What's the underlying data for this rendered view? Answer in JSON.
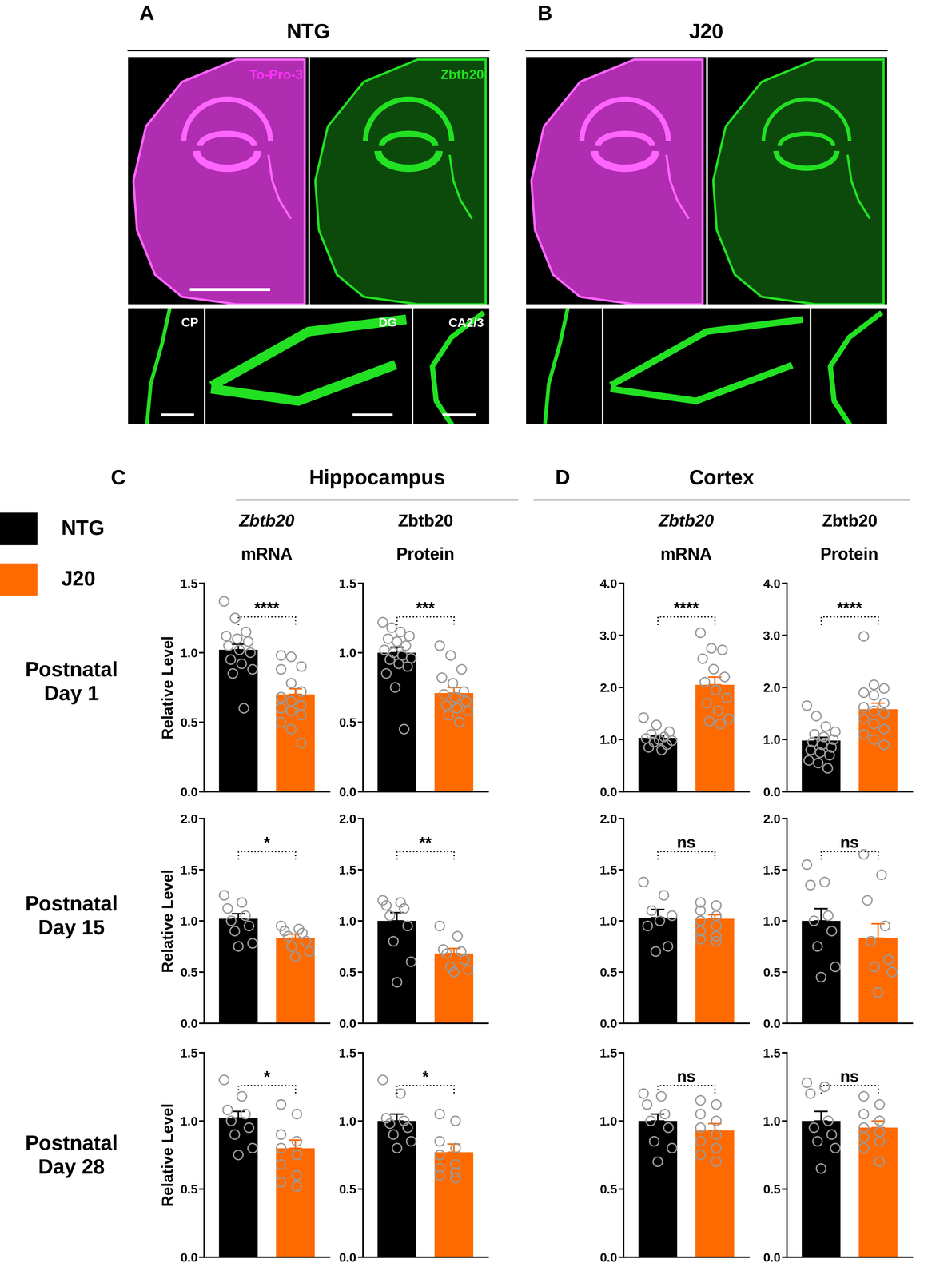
{
  "images": {
    "panels": [
      {
        "label": "A",
        "title": "NTG"
      },
      {
        "label": "B",
        "title": "J20"
      }
    ],
    "stains": [
      "To-Pro-3",
      "Zbtb20"
    ],
    "insets": [
      "CP",
      "DG",
      "CA2/3"
    ]
  },
  "sections": [
    {
      "label": "C",
      "title": "Hippocampus"
    },
    {
      "label": "D",
      "title": "Cortex"
    }
  ],
  "column_titles": [
    [
      "Zbtb20",
      "mRNA"
    ],
    [
      "Zbtb20",
      "Protein"
    ],
    [
      "Zbtb20",
      "mRNA"
    ],
    [
      "Zbtb20",
      "Protein"
    ]
  ],
  "row_titles": [
    "Postnatal\nDay 1",
    "Postnatal\nDay 15",
    "Postnatal\nDay 28"
  ],
  "legend": [
    {
      "name": "NTG",
      "color": "#000000"
    },
    {
      "name": "J20",
      "color": "#ff6a00"
    }
  ],
  "chart_data": [
    {
      "type": "bar",
      "tick_labels": "y",
      "ylabel": "Relative Level",
      "ylim": [
        0,
        1.5
      ],
      "yticks": [
        {
          "value": 0,
          "label": "0.0"
        },
        {
          "value": 0.5,
          "label": "0.5"
        },
        {
          "value": 1,
          "label": "1.0"
        },
        {
          "value": 1.5,
          "label": "1.5"
        }
      ],
      "significance": "****",
      "series": [
        {
          "name": "NTG",
          "color": "#000000",
          "values": [
            1.02
          ],
          "errors": [
            0.04
          ],
          "points": [
            1.37,
            1.25,
            1.15,
            1.12,
            1.1,
            1.08,
            1.05,
            1.02,
            1.0,
            0.95,
            0.92,
            0.88,
            0.85,
            0.6
          ]
        },
        {
          "name": "J20",
          "color": "#ff6a00",
          "values": [
            0.7
          ],
          "errors": [
            0.04
          ],
          "points": [
            0.98,
            0.97,
            0.9,
            0.88,
            0.78,
            0.72,
            0.68,
            0.65,
            0.62,
            0.6,
            0.58,
            0.55,
            0.5,
            0.45,
            0.35
          ]
        }
      ]
    },
    {
      "type": "bar",
      "tick_labels": "y",
      "ylim": [
        0,
        1.5
      ],
      "yticks": [
        {
          "value": 0,
          "label": "0.0"
        },
        {
          "value": 0.5,
          "label": "0.5"
        },
        {
          "value": 1,
          "label": "1.0"
        },
        {
          "value": 1.5,
          "label": "1.5"
        }
      ],
      "significance": "***",
      "series": [
        {
          "name": "NTG",
          "color": "#000000",
          "values": [
            1.0
          ],
          "errors": [
            0.04
          ],
          "points": [
            1.22,
            1.18,
            1.15,
            1.12,
            1.1,
            1.08,
            1.05,
            1.02,
            1.0,
            0.98,
            0.96,
            0.95,
            0.92,
            0.9,
            0.85,
            0.75,
            0.45
          ]
        },
        {
          "name": "J20",
          "color": "#ff6a00",
          "values": [
            0.71
          ],
          "errors": [
            0.04
          ],
          "points": [
            1.05,
            0.98,
            0.88,
            0.82,
            0.78,
            0.72,
            0.7,
            0.68,
            0.65,
            0.62,
            0.6,
            0.58,
            0.55,
            0.5
          ]
        }
      ]
    },
    {
      "type": "bar",
      "tick_labels": "y",
      "ylim": [
        0,
        4
      ],
      "yticks": [
        {
          "value": 0,
          "label": "0.0"
        },
        {
          "value": 1,
          "label": "1.0"
        },
        {
          "value": 2,
          "label": "2.0"
        },
        {
          "value": 3,
          "label": "3.0"
        },
        {
          "value": 4,
          "label": "4.0"
        }
      ],
      "significance": "****",
      "series": [
        {
          "name": "NTG",
          "color": "#000000",
          "values": [
            1.03
          ],
          "errors": [
            0.04
          ],
          "points": [
            1.42,
            1.28,
            1.15,
            1.1,
            1.05,
            1.02,
            1.0,
            0.98,
            0.95,
            0.9,
            0.85,
            0.8
          ]
        },
        {
          "name": "J20",
          "color": "#ff6a00",
          "values": [
            2.05
          ],
          "errors": [
            0.15
          ],
          "points": [
            3.05,
            2.75,
            2.72,
            2.55,
            2.35,
            2.2,
            2.1,
            1.95,
            1.8,
            1.7,
            1.55,
            1.4,
            1.35,
            1.3
          ]
        }
      ]
    },
    {
      "type": "bar",
      "tick_labels": "y",
      "ylim": [
        0,
        4
      ],
      "yticks": [
        {
          "value": 0,
          "label": "0.0"
        },
        {
          "value": 1,
          "label": "1.0"
        },
        {
          "value": 2,
          "label": "2.0"
        },
        {
          "value": 3,
          "label": "3.0"
        },
        {
          "value": 4,
          "label": "4.0"
        }
      ],
      "significance": "****",
      "series": [
        {
          "name": "NTG",
          "color": "#000000",
          "values": [
            0.98
          ],
          "errors": [
            0.06
          ],
          "points": [
            1.65,
            1.45,
            1.25,
            1.15,
            1.1,
            1.05,
            1.0,
            0.95,
            0.9,
            0.85,
            0.8,
            0.75,
            0.7,
            0.6,
            0.55,
            0.45
          ]
        },
        {
          "name": "J20",
          "color": "#ff6a00",
          "values": [
            1.58
          ],
          "errors": [
            0.12
          ],
          "points": [
            2.98,
            2.05,
            1.98,
            1.9,
            1.85,
            1.7,
            1.62,
            1.55,
            1.5,
            1.4,
            1.3,
            1.2,
            1.1,
            1.0,
            0.9
          ]
        }
      ]
    },
    {
      "type": "bar",
      "tick_labels": "y",
      "ylabel": "Relative Level",
      "ylim": [
        0,
        2
      ],
      "yticks": [
        {
          "value": 0,
          "label": "0.0"
        },
        {
          "value": 0.5,
          "label": "0.5"
        },
        {
          "value": 1,
          "label": "1.0"
        },
        {
          "value": 1.5,
          "label": "1.5"
        },
        {
          "value": 2,
          "label": "2.0"
        }
      ],
      "significance": "*",
      "series": [
        {
          "name": "NTG",
          "color": "#000000",
          "values": [
            1.02
          ],
          "errors": [
            0.05
          ],
          "points": [
            1.25,
            1.18,
            1.12,
            1.05,
            1.0,
            0.95,
            0.9,
            0.78,
            0.75
          ]
        },
        {
          "name": "J20",
          "color": "#ff6a00",
          "values": [
            0.83
          ],
          "errors": [
            0.04
          ],
          "points": [
            0.95,
            0.92,
            0.9,
            0.88,
            0.85,
            0.8,
            0.75,
            0.7,
            0.65
          ]
        }
      ]
    },
    {
      "type": "bar",
      "tick_labels": "y",
      "ylim": [
        0,
        2
      ],
      "yticks": [
        {
          "value": 0,
          "label": "0.0"
        },
        {
          "value": 0.5,
          "label": "0.5"
        },
        {
          "value": 1,
          "label": "1.0"
        },
        {
          "value": 1.5,
          "label": "1.5"
        },
        {
          "value": 2,
          "label": "2.0"
        }
      ],
      "significance": "**",
      "series": [
        {
          "name": "NTG",
          "color": "#000000",
          "values": [
            1.0
          ],
          "errors": [
            0.08
          ],
          "points": [
            1.2,
            1.18,
            1.15,
            1.12,
            1.05,
            0.95,
            0.8,
            0.6,
            0.4
          ]
        },
        {
          "name": "J20",
          "color": "#ff6a00",
          "values": [
            0.68
          ],
          "errors": [
            0.05
          ],
          "points": [
            0.95,
            0.85,
            0.72,
            0.7,
            0.68,
            0.62,
            0.55,
            0.52,
            0.5
          ]
        }
      ]
    },
    {
      "type": "bar",
      "tick_labels": "y",
      "ylim": [
        0,
        2
      ],
      "yticks": [
        {
          "value": 0,
          "label": "0.0"
        },
        {
          "value": 0.5,
          "label": "0.5"
        },
        {
          "value": 1,
          "label": "1.0"
        },
        {
          "value": 1.5,
          "label": "1.5"
        },
        {
          "value": 2,
          "label": "2.0"
        }
      ],
      "significance": "ns",
      "series": [
        {
          "name": "NTG",
          "color": "#000000",
          "values": [
            1.03
          ],
          "errors": [
            0.08
          ],
          "points": [
            1.38,
            1.25,
            1.1,
            1.05,
            1.0,
            0.95,
            0.75,
            0.7
          ]
        },
        {
          "name": "J20",
          "color": "#ff6a00",
          "values": [
            1.02
          ],
          "errors": [
            0.04
          ],
          "points": [
            1.18,
            1.15,
            1.1,
            1.05,
            1.0,
            0.95,
            0.9,
            0.85,
            0.82,
            0.8
          ]
        }
      ]
    },
    {
      "type": "bar",
      "tick_labels": "y",
      "ylim": [
        0,
        2
      ],
      "yticks": [
        {
          "value": 0,
          "label": "0.0"
        },
        {
          "value": 0.5,
          "label": "0.5"
        },
        {
          "value": 1,
          "label": "1.0"
        },
        {
          "value": 1.5,
          "label": "1.5"
        },
        {
          "value": 2,
          "label": "2.0"
        }
      ],
      "significance": "ns",
      "series": [
        {
          "name": "NTG",
          "color": "#000000",
          "values": [
            1.0
          ],
          "errors": [
            0.12
          ],
          "points": [
            1.55,
            1.38,
            1.35,
            1.05,
            1.0,
            0.9,
            0.75,
            0.55,
            0.45
          ]
        },
        {
          "name": "J20",
          "color": "#ff6a00",
          "values": [
            0.83
          ],
          "errors": [
            0.14
          ],
          "points": [
            1.65,
            1.45,
            1.2,
            0.95,
            0.8,
            0.62,
            0.55,
            0.5,
            0.3
          ]
        }
      ]
    },
    {
      "type": "bar",
      "tick_labels": "y",
      "ylabel": "Relative Level",
      "ylim": [
        0,
        1.5
      ],
      "yticks": [
        {
          "value": 0,
          "label": "0.0"
        },
        {
          "value": 0.5,
          "label": "0.5"
        },
        {
          "value": 1,
          "label": "1.0"
        },
        {
          "value": 1.5,
          "label": "1.5"
        }
      ],
      "significance": "*",
      "series": [
        {
          "name": "NTG",
          "color": "#000000",
          "values": [
            1.02
          ],
          "errors": [
            0.05
          ],
          "points": [
            1.3,
            1.18,
            1.08,
            1.05,
            1.0,
            0.95,
            0.9,
            0.8,
            0.75
          ]
        },
        {
          "name": "J20",
          "color": "#ff6a00",
          "values": [
            0.8
          ],
          "errors": [
            0.06
          ],
          "points": [
            1.12,
            1.05,
            0.9,
            0.85,
            0.8,
            0.75,
            0.68,
            0.6,
            0.55,
            0.52
          ]
        }
      ]
    },
    {
      "type": "bar",
      "tick_labels": "y",
      "ylim": [
        0,
        1.5
      ],
      "yticks": [
        {
          "value": 0,
          "label": "0.0"
        },
        {
          "value": 0.5,
          "label": "0.5"
        },
        {
          "value": 1,
          "label": "1.0"
        },
        {
          "value": 1.5,
          "label": "1.5"
        }
      ],
      "significance": "*",
      "series": [
        {
          "name": "NTG",
          "color": "#000000",
          "values": [
            1.0
          ],
          "errors": [
            0.05
          ],
          "points": [
            1.3,
            1.2,
            1.02,
            1.0,
            0.98,
            0.95,
            0.9,
            0.85,
            0.8
          ]
        },
        {
          "name": "J20",
          "color": "#ff6a00",
          "values": [
            0.77
          ],
          "errors": [
            0.06
          ],
          "points": [
            1.05,
            1.0,
            0.85,
            0.8,
            0.75,
            0.68,
            0.65,
            0.62,
            0.6,
            0.58
          ]
        }
      ]
    },
    {
      "type": "bar",
      "tick_labels": "y",
      "ylim": [
        0,
        1.5
      ],
      "yticks": [
        {
          "value": 0,
          "label": "0.0"
        },
        {
          "value": 0.5,
          "label": "0.5"
        },
        {
          "value": 1,
          "label": "1.0"
        },
        {
          "value": 1.5,
          "label": "1.5"
        }
      ],
      "significance": "ns",
      "series": [
        {
          "name": "NTG",
          "color": "#000000",
          "values": [
            1.0
          ],
          "errors": [
            0.05
          ],
          "points": [
            1.2,
            1.18,
            1.12,
            1.05,
            1.0,
            0.95,
            0.85,
            0.8,
            0.7
          ]
        },
        {
          "name": "J20",
          "color": "#ff6a00",
          "values": [
            0.93
          ],
          "errors": [
            0.05
          ],
          "points": [
            1.15,
            1.12,
            1.05,
            1.0,
            0.95,
            0.9,
            0.85,
            0.8,
            0.75,
            0.7
          ]
        }
      ]
    },
    {
      "type": "bar",
      "tick_labels": "y",
      "ylim": [
        0,
        1.5
      ],
      "yticks": [
        {
          "value": 0,
          "label": "0.0"
        },
        {
          "value": 0.5,
          "label": "0.5"
        },
        {
          "value": 1,
          "label": "1.0"
        },
        {
          "value": 1.5,
          "label": "1.5"
        }
      ],
      "significance": "ns",
      "series": [
        {
          "name": "NTG",
          "color": "#000000",
          "values": [
            1.0
          ],
          "errors": [
            0.07
          ],
          "points": [
            1.28,
            1.25,
            1.2,
            1.0,
            0.95,
            0.9,
            0.85,
            0.8,
            0.65
          ]
        },
        {
          "name": "J20",
          "color": "#ff6a00",
          "values": [
            0.95
          ],
          "errors": [
            0.05
          ],
          "points": [
            1.18,
            1.12,
            1.05,
            1.0,
            0.95,
            0.92,
            0.88,
            0.85,
            0.8,
            0.7
          ]
        }
      ]
    }
  ]
}
